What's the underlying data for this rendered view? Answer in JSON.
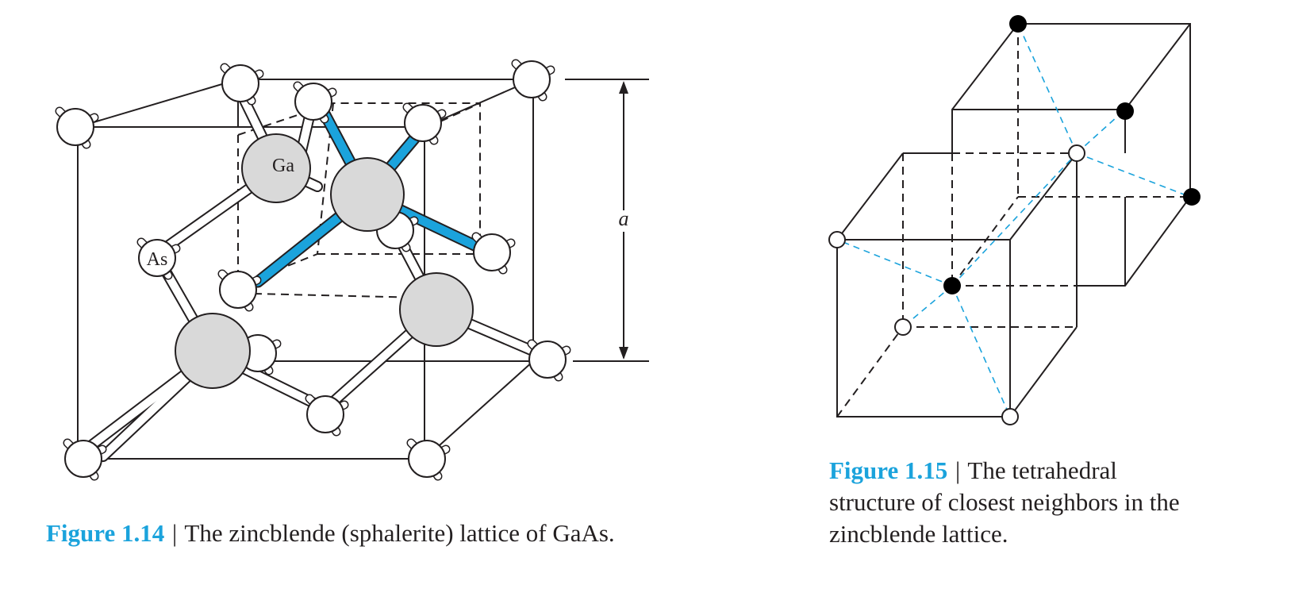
{
  "figure14": {
    "label": "Figure 1.14",
    "separator": "|",
    "text": "The zincblende (sphalerite) lattice of GaAs.",
    "atom_labels": {
      "ga": "Ga",
      "as": "As"
    },
    "dimension_label": "a"
  },
  "figure15": {
    "label": "Figure 1.15",
    "separator": "|",
    "text_lines": [
      "The tetrahedral",
      "structure of closest neighbors in the",
      "zincblende lattice."
    ]
  },
  "colors": {
    "accent_blue": "#1ba3dc",
    "ink": "#231f20",
    "ga_atom_fill": "#d9d9d9"
  }
}
